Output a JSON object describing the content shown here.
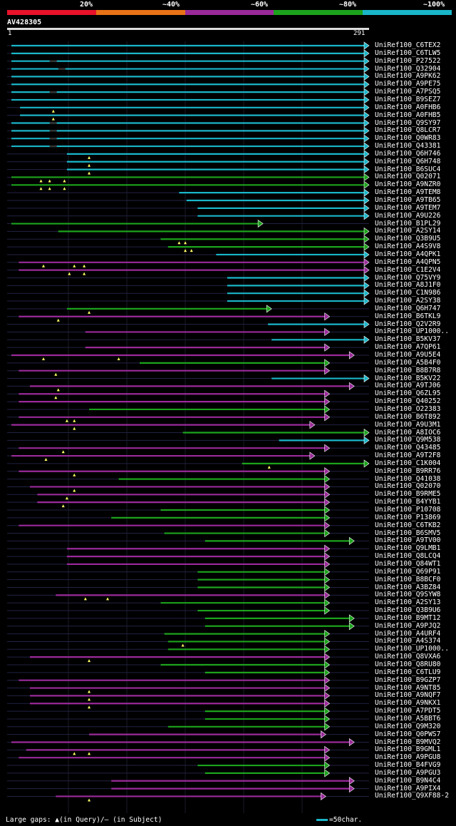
{
  "legend": {
    "labels": [
      "20%",
      "~40%",
      "~60%",
      "~80%",
      "~100%"
    ],
    "colors": [
      "#e8122b",
      "#e87216",
      "#9a2a9a",
      "#1ca31c",
      "#1ab6c9"
    ]
  },
  "query": {
    "name": "AV428305",
    "start": "1",
    "end": "291",
    "length": 291
  },
  "colors": {
    "cyan": "#1ab6c9",
    "green": "#1ca31c",
    "purple": "#9a2a9a",
    "tri": "#ffff66",
    "gap": "#333333",
    "grid": "#222244"
  },
  "footer": {
    "text": "Large gaps: ▲(in Query)/— (in Subject)",
    "scale_text": "=50char."
  },
  "hits": [
    {
      "name": "UniRef100_C6TEX2",
      "qs": 1,
      "qe": 291,
      "c": "cyan",
      "gaps": [],
      "tris": []
    },
    {
      "name": "UniRef100_C6TLW5",
      "qs": 1,
      "qe": 291,
      "c": "cyan",
      "gaps": [],
      "tris": []
    },
    {
      "name": "UniRef100_P27522",
      "qs": 1,
      "qe": 291,
      "c": "cyan",
      "gaps": [
        32
      ],
      "tris": []
    },
    {
      "name": "UniRef100_Q32904",
      "qs": 1,
      "qe": 291,
      "c": "cyan",
      "gaps": [
        39
      ],
      "tris": []
    },
    {
      "name": "UniRef100_A9PK62",
      "qs": 1,
      "qe": 291,
      "c": "cyan",
      "gaps": [],
      "tris": []
    },
    {
      "name": "UniRef100_A9PE75",
      "qs": 1,
      "qe": 291,
      "c": "cyan",
      "gaps": [],
      "tris": []
    },
    {
      "name": "UniRef100_A7PSQ5",
      "qs": 1,
      "qe": 291,
      "c": "cyan",
      "gaps": [
        32
      ],
      "tris": []
    },
    {
      "name": "UniRef100_B9SEZ7",
      "qs": 1,
      "qe": 291,
      "c": "cyan",
      "gaps": [],
      "tris": []
    },
    {
      "name": "UniRef100_A0FHB6",
      "qs": 8,
      "qe": 291,
      "c": "cyan",
      "gaps": [],
      "tris": [
        35
      ]
    },
    {
      "name": "UniRef100_A0FHB5",
      "qs": 8,
      "qe": 291,
      "c": "cyan",
      "gaps": [],
      "tris": [
        35
      ]
    },
    {
      "name": "UniRef100_Q9SY97",
      "qs": 1,
      "qe": 291,
      "c": "cyan",
      "gaps": [
        32
      ],
      "tris": []
    },
    {
      "name": "UniRef100_Q8LCR7",
      "qs": 1,
      "qe": 291,
      "c": "cyan",
      "gaps": [
        32
      ],
      "tris": []
    },
    {
      "name": "UniRef100_Q0WR83",
      "qs": 1,
      "qe": 291,
      "c": "cyan",
      "gaps": [
        32
      ],
      "tris": []
    },
    {
      "name": "UniRef100_Q43381",
      "qs": 1,
      "qe": 291,
      "c": "cyan",
      "gaps": [
        32
      ],
      "tris": []
    },
    {
      "name": "UniRef100_Q6H746",
      "qs": 46,
      "qe": 291,
      "c": "cyan",
      "gaps": [],
      "tris": [
        64
      ]
    },
    {
      "name": "UniRef100_Q6H748",
      "qs": 46,
      "qe": 291,
      "c": "cyan",
      "gaps": [],
      "tris": [
        64
      ]
    },
    {
      "name": "UniRef100_B6SUC4",
      "qs": 46,
      "qe": 291,
      "c": "cyan",
      "gaps": [],
      "tris": [
        64
      ]
    },
    {
      "name": "UniRef100_Q02071",
      "qs": 1,
      "qe": 291,
      "c": "green",
      "gaps": [],
      "tris": [
        25,
        32,
        44
      ]
    },
    {
      "name": "UniRef100_A9NZR0",
      "qs": 1,
      "qe": 291,
      "c": "green",
      "gaps": [],
      "tris": [
        25,
        32,
        44
      ]
    },
    {
      "name": "UniRef100_A9TEM8",
      "qs": 137,
      "qe": 291,
      "c": "cyan",
      "gaps": [],
      "tris": []
    },
    {
      "name": "UniRef100_A9TB65",
      "qs": 143,
      "qe": 291,
      "c": "cyan",
      "gaps": [],
      "tris": []
    },
    {
      "name": "UniRef100_A9TEM7",
      "qs": 152,
      "qe": 291,
      "c": "cyan",
      "gaps": [],
      "tris": []
    },
    {
      "name": "UniRef100_A9U226",
      "qs": 152,
      "qe": 291,
      "c": "cyan",
      "gaps": [],
      "tris": []
    },
    {
      "name": "UniRef100_B1PL29",
      "qs": 1,
      "qe": 205,
      "c": "green",
      "gaps": [],
      "tris": []
    },
    {
      "name": "UniRef100_A2SY14",
      "qs": 39,
      "qe": 291,
      "c": "green",
      "gaps": [],
      "tris": []
    },
    {
      "name": "UniRef100_Q3B9U5",
      "qs": 122,
      "qe": 291,
      "c": "green",
      "gaps": [],
      "tris": [
        137,
        142
      ]
    },
    {
      "name": "UniRef100_A4S9V8",
      "qs": 128,
      "qe": 291,
      "c": "green",
      "gaps": [],
      "tris": [
        142,
        147
      ]
    },
    {
      "name": "UniRef100_A4QPK1",
      "qs": 167,
      "qe": 291,
      "c": "cyan",
      "gaps": [],
      "tris": []
    },
    {
      "name": "UniRef100_A4QPN5",
      "qs": 7,
      "qe": 291,
      "c": "purple",
      "gaps": [],
      "tris": [
        27,
        52,
        60
      ]
    },
    {
      "name": "UniRef100_C1E2V4",
      "qs": 7,
      "qe": 291,
      "c": "purple",
      "gaps": [],
      "tris": [
        48,
        60
      ]
    },
    {
      "name": "UniRef100_Q75VY9",
      "qs": 176,
      "qe": 291,
      "c": "cyan",
      "gaps": [],
      "tris": []
    },
    {
      "name": "UniRef100_A8J1F0",
      "qs": 176,
      "qe": 291,
      "c": "cyan",
      "gaps": [],
      "tris": []
    },
    {
      "name": "UniRef100_C1N986",
      "qs": 176,
      "qe": 291,
      "c": "cyan",
      "gaps": [],
      "tris": []
    },
    {
      "name": "UniRef100_A2SY38",
      "qs": 176,
      "qe": 291,
      "c": "cyan",
      "gaps": [],
      "tris": []
    },
    {
      "name": "UniRef100_Q6H747",
      "qs": 46,
      "qe": 212,
      "c": "green",
      "gaps": [],
      "tris": [
        64
      ]
    },
    {
      "name": "UniRef100_B6TKL9",
      "qs": 7,
      "qe": 259,
      "c": "purple",
      "gaps": [],
      "tris": [
        39
      ]
    },
    {
      "name": "UniRef100_Q2V2R9",
      "qs": 209,
      "qe": 291,
      "c": "cyan",
      "gaps": [],
      "tris": []
    },
    {
      "name": "UniRef100_UP1000..",
      "qs": 61,
      "qe": 259,
      "c": "purple",
      "gaps": [],
      "tris": []
    },
    {
      "name": "UniRef100_B5KV37",
      "qs": 212,
      "qe": 291,
      "c": "cyan",
      "gaps": [],
      "tris": []
    },
    {
      "name": "UniRef100_A7QP61",
      "qs": 61,
      "qe": 259,
      "c": "purple",
      "gaps": [],
      "tris": []
    },
    {
      "name": "UniRef100_A9U5E4",
      "qs": 1,
      "qe": 279,
      "c": "purple",
      "gaps": [],
      "tris": [
        27,
        88
      ]
    },
    {
      "name": "UniRef100_A5B4F0",
      "qs": 105,
      "qe": 259,
      "c": "green",
      "gaps": [],
      "tris": []
    },
    {
      "name": "UniRef100_B8B7R8",
      "qs": 7,
      "qe": 259,
      "c": "purple",
      "gaps": [],
      "tris": [
        37
      ]
    },
    {
      "name": "UniRef100_B5KV22",
      "qs": 212,
      "qe": 291,
      "c": "cyan",
      "gaps": [],
      "tris": []
    },
    {
      "name": "UniRef100_A9TJ06",
      "qs": 16,
      "qe": 279,
      "c": "purple",
      "gaps": [],
      "tris": [
        39
      ]
    },
    {
      "name": "UniRef100_Q6ZL95",
      "qs": 7,
      "qe": 259,
      "c": "purple",
      "gaps": [],
      "tris": [
        37
      ]
    },
    {
      "name": "UniRef100_Q40252",
      "qs": 7,
      "qe": 259,
      "c": "purple",
      "gaps": [],
      "tris": []
    },
    {
      "name": "UniRef100_O22383",
      "qs": 64,
      "qe": 259,
      "c": "green",
      "gaps": [],
      "tris": []
    },
    {
      "name": "UniRef100_B6T892",
      "qs": 7,
      "qe": 259,
      "c": "purple",
      "gaps": [],
      "tris": [
        46,
        52
      ]
    },
    {
      "name": "UniRef100_A9U3M1",
      "qs": 1,
      "qe": 247,
      "c": "purple",
      "gaps": [],
      "tris": [
        52
      ]
    },
    {
      "name": "UniRef100_A8IOC6",
      "qs": 140,
      "qe": 291,
      "c": "green",
      "gaps": [],
      "tris": []
    },
    {
      "name": "UniRef100_Q9M538",
      "qs": 218,
      "qe": 291,
      "c": "cyan",
      "gaps": [],
      "tris": []
    },
    {
      "name": "UniRef100_Q43485",
      "qs": 7,
      "qe": 259,
      "c": "purple",
      "gaps": [],
      "tris": [
        43
      ]
    },
    {
      "name": "UniRef100_A9T2F8",
      "qs": 1,
      "qe": 247,
      "c": "purple",
      "gaps": [],
      "tris": [
        29
      ]
    },
    {
      "name": "UniRef100_C1K004",
      "qs": 188,
      "qe": 291,
      "c": "green",
      "gaps": [],
      "tris": [
        210
      ]
    },
    {
      "name": "UniRef100_B9RR76",
      "qs": 7,
      "qe": 259,
      "c": "purple",
      "gaps": [],
      "tris": [
        52
      ]
    },
    {
      "name": "UniRef100_Q41038",
      "qs": 88,
      "qe": 259,
      "c": "green",
      "gaps": [],
      "tris": []
    },
    {
      "name": "UniRef100_Q02070",
      "qs": 16,
      "qe": 259,
      "c": "purple",
      "gaps": [],
      "tris": [
        52
      ]
    },
    {
      "name": "UniRef100_B9RME5",
      "qs": 22,
      "qe": 259,
      "c": "purple",
      "gaps": [],
      "tris": [
        46
      ]
    },
    {
      "name": "UniRef100_B4YYB1",
      "qs": 22,
      "qe": 259,
      "c": "purple",
      "gaps": [],
      "tris": [
        43
      ]
    },
    {
      "name": "UniRef100_P10708",
      "qs": 122,
      "qe": 259,
      "c": "green",
      "gaps": [],
      "tris": []
    },
    {
      "name": "UniRef100_P13869",
      "qs": 82,
      "qe": 259,
      "c": "green",
      "gaps": [],
      "tris": []
    },
    {
      "name": "UniRef100_C6TKB2",
      "qs": 7,
      "qe": 259,
      "c": "purple",
      "gaps": [],
      "tris": []
    },
    {
      "name": "UniRef100_B6SMV5",
      "qs": 125,
      "qe": 259,
      "c": "green",
      "gaps": [],
      "tris": []
    },
    {
      "name": "UniRef100_A9TV00",
      "qs": 158,
      "qe": 279,
      "c": "green",
      "gaps": [],
      "tris": []
    },
    {
      "name": "UniRef100_Q9LMB1",
      "qs": 46,
      "qe": 259,
      "c": "purple",
      "gaps": [],
      "tris": []
    },
    {
      "name": "UniRef100_Q8LCQ4",
      "qs": 46,
      "qe": 259,
      "c": "purple",
      "gaps": [],
      "tris": []
    },
    {
      "name": "UniRef100_Q84WT1",
      "qs": 46,
      "qe": 259,
      "c": "purple",
      "gaps": [],
      "tris": []
    },
    {
      "name": "UniRef100_Q69P91",
      "qs": 152,
      "qe": 259,
      "c": "green",
      "gaps": [],
      "tris": []
    },
    {
      "name": "UniRef100_B8BCF0",
      "qs": 152,
      "qe": 259,
      "c": "green",
      "gaps": [],
      "tris": []
    },
    {
      "name": "UniRef100_A3BZ84",
      "qs": 152,
      "qe": 259,
      "c": "green",
      "gaps": [],
      "tris": []
    },
    {
      "name": "UniRef100_Q9SYW8",
      "qs": 37,
      "qe": 259,
      "c": "purple",
      "gaps": [],
      "tris": [
        61,
        79
      ]
    },
    {
      "name": "UniRef100_A2SY13",
      "qs": 122,
      "qe": 259,
      "c": "green",
      "gaps": [],
      "tris": []
    },
    {
      "name": "UniRef100_Q3B9U6",
      "qs": 152,
      "qe": 259,
      "c": "green",
      "gaps": [],
      "tris": []
    },
    {
      "name": "UniRef100_B9MT12",
      "qs": 158,
      "qe": 279,
      "c": "green",
      "gaps": [],
      "tris": []
    },
    {
      "name": "UniRef100_A9PJQ2",
      "qs": 158,
      "qe": 279,
      "c": "green",
      "gaps": [],
      "tris": []
    },
    {
      "name": "UniRef100_A4URF4",
      "qs": 125,
      "qe": 259,
      "c": "green",
      "gaps": [],
      "tris": []
    },
    {
      "name": "UniRef100_A4S374",
      "qs": 128,
      "qe": 259,
      "c": "green",
      "gaps": [],
      "tris": [
        140
      ]
    },
    {
      "name": "UniRef100_UP1000..",
      "qs": 128,
      "qe": 259,
      "c": "green",
      "gaps": [],
      "tris": []
    },
    {
      "name": "UniRef100_Q8VXA6",
      "qs": 16,
      "qe": 259,
      "c": "purple",
      "gaps": [],
      "tris": [
        64
      ]
    },
    {
      "name": "UniRef100_Q8RU80",
      "qs": 122,
      "qe": 259,
      "c": "green",
      "gaps": [],
      "tris": []
    },
    {
      "name": "UniRef100_C6TLU9",
      "qs": 158,
      "qe": 259,
      "c": "green",
      "gaps": [],
      "tris": []
    },
    {
      "name": "UniRef100_B9GZP7",
      "qs": 7,
      "qe": 259,
      "c": "purple",
      "gaps": [],
      "tris": []
    },
    {
      "name": "UniRef100_A9NT85",
      "qs": 16,
      "qe": 259,
      "c": "purple",
      "gaps": [],
      "tris": [
        64
      ]
    },
    {
      "name": "UniRef100_A9NQF7",
      "qs": 16,
      "qe": 259,
      "c": "purple",
      "gaps": [],
      "tris": [
        64
      ]
    },
    {
      "name": "UniRef100_A9NKX1",
      "qs": 16,
      "qe": 259,
      "c": "purple",
      "gaps": [],
      "tris": [
        64
      ]
    },
    {
      "name": "UniRef100_A7PDT5",
      "qs": 158,
      "qe": 259,
      "c": "green",
      "gaps": [],
      "tris": []
    },
    {
      "name": "UniRef100_A5BBT6",
      "qs": 158,
      "qe": 259,
      "c": "green",
      "gaps": [],
      "tris": []
    },
    {
      "name": "UniRef100_Q9M320",
      "qs": 128,
      "qe": 259,
      "c": "green",
      "gaps": [],
      "tris": []
    },
    {
      "name": "UniRef100_Q0PWS7",
      "qs": 64,
      "qe": 256,
      "c": "purple",
      "gaps": [],
      "tris": []
    },
    {
      "name": "UniRef100_B9MVQ2",
      "qs": 1,
      "qe": 279,
      "c": "purple",
      "gaps": [],
      "tris": []
    },
    {
      "name": "UniRef100_B9GML1",
      "qs": 13,
      "qe": 259,
      "c": "purple",
      "gaps": [],
      "tris": [
        52,
        64
      ]
    },
    {
      "name": "UniRef100_A9PGU8",
      "qs": 7,
      "qe": 259,
      "c": "purple",
      "gaps": [],
      "tris": []
    },
    {
      "name": "UniRef100_B4FVG9",
      "qs": 152,
      "qe": 259,
      "c": "green",
      "gaps": [],
      "tris": []
    },
    {
      "name": "UniRef100_A9PGU3",
      "qs": 158,
      "qe": 259,
      "c": "green",
      "gaps": [],
      "tris": []
    },
    {
      "name": "UniRef100_B9N4C4",
      "qs": 82,
      "qe": 279,
      "c": "purple",
      "gaps": [],
      "tris": []
    },
    {
      "name": "UniRef100_A9PIX4",
      "qs": 82,
      "qe": 279,
      "c": "purple",
      "gaps": [],
      "tris": []
    },
    {
      "name": "UniRef100_Q9XF88-2",
      "qs": 37,
      "qe": 256,
      "c": "purple",
      "gaps": [],
      "tris": [
        64
      ]
    }
  ]
}
